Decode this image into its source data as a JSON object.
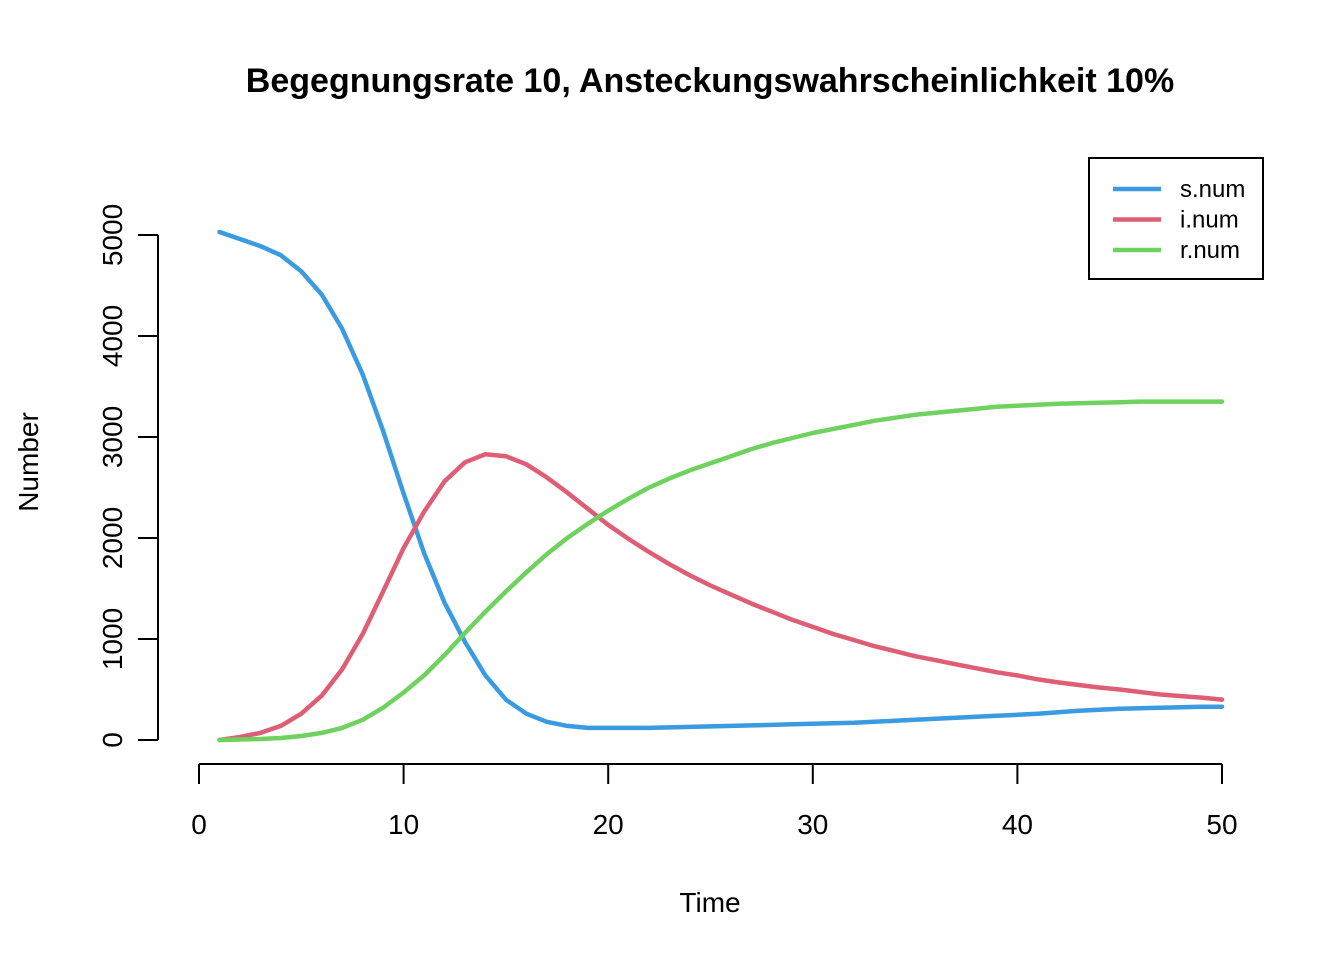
{
  "chart_data": {
    "type": "line",
    "title": "Begegnungsrate 10, Ansteckungswahrscheinlichkeit 10%",
    "xlabel": "Time",
    "ylabel": "Number",
    "xlim": [
      1,
      50
    ],
    "ylim": [
      0,
      5000
    ],
    "x_ticks": [
      0,
      10,
      20,
      30,
      40,
      50
    ],
    "y_ticks": [
      0,
      1000,
      2000,
      3000,
      4000,
      5000
    ],
    "grid": false,
    "legend_position": "top-right",
    "x": [
      1,
      2,
      3,
      4,
      5,
      6,
      7,
      8,
      9,
      10,
      11,
      12,
      13,
      14,
      15,
      16,
      17,
      18,
      19,
      20,
      21,
      22,
      23,
      24,
      25,
      26,
      27,
      28,
      29,
      30,
      31,
      32,
      33,
      34,
      35,
      36,
      37,
      38,
      39,
      40,
      41,
      42,
      43,
      44,
      45,
      46,
      47,
      48,
      49,
      50
    ],
    "series": [
      {
        "name": "s.num",
        "color": "#3b9be0",
        "values": [
          5030,
          4960,
          4890,
          4800,
          4640,
          4410,
          4070,
          3620,
          3060,
          2440,
          1850,
          1360,
          970,
          640,
          400,
          260,
          180,
          140,
          120,
          120,
          120,
          120,
          125,
          130,
          135,
          140,
          145,
          150,
          155,
          160,
          165,
          170,
          180,
          190,
          200,
          210,
          220,
          230,
          240,
          250,
          260,
          275,
          290,
          300,
          310,
          315,
          320,
          325,
          330,
          330
        ]
      },
      {
        "name": "i.num",
        "color": "#de5e75",
        "values": [
          0,
          30,
          70,
          140,
          260,
          440,
          700,
          1050,
          1470,
          1900,
          2260,
          2560,
          2750,
          2830,
          2810,
          2730,
          2600,
          2450,
          2290,
          2130,
          1990,
          1860,
          1740,
          1630,
          1530,
          1440,
          1350,
          1270,
          1190,
          1120,
          1050,
          990,
          930,
          880,
          830,
          790,
          750,
          710,
          670,
          640,
          600,
          570,
          545,
          520,
          500,
          475,
          450,
          435,
          420,
          400
        ]
      },
      {
        "name": "r.num",
        "color": "#6fd15e",
        "values": [
          0,
          5,
          10,
          20,
          40,
          70,
          120,
          200,
          320,
          470,
          640,
          840,
          1060,
          1270,
          1470,
          1660,
          1840,
          2000,
          2140,
          2270,
          2390,
          2500,
          2590,
          2670,
          2740,
          2810,
          2880,
          2940,
          2990,
          3040,
          3080,
          3120,
          3160,
          3190,
          3220,
          3240,
          3260,
          3280,
          3300,
          3310,
          3320,
          3330,
          3335,
          3340,
          3345,
          3350,
          3350,
          3350,
          3350,
          3350
        ]
      }
    ]
  }
}
